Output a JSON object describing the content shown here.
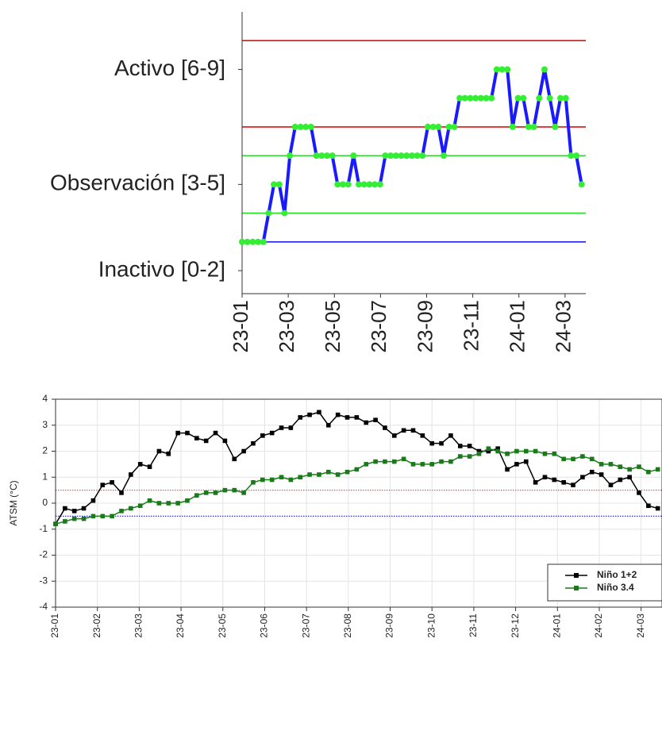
{
  "chart_data": [
    {
      "type": "line",
      "x": [
        0,
        0.23,
        0.46,
        0.69,
        0.92,
        1.15,
        1.38,
        1.61,
        1.84,
        2.07,
        2.3,
        2.53,
        2.76,
        2.99,
        3.22,
        3.45,
        3.68,
        3.91,
        4.14,
        4.37,
        4.6,
        4.83,
        5.06,
        5.29,
        5.52,
        5.75,
        5.98,
        6.21,
        6.44,
        6.67,
        6.9,
        7.13,
        7.36,
        7.59,
        7.82,
        8.05,
        8.28,
        8.51,
        8.74,
        8.97,
        9.2,
        9.43,
        9.66,
        9.89,
        10.12,
        10.35,
        10.58,
        10.81,
        11.04,
        11.27,
        11.5,
        11.73,
        11.96,
        12.19,
        12.42,
        12.65,
        12.88,
        13.11,
        13.34,
        13.57,
        13.8,
        14.03,
        14.26,
        14.49,
        14.72
      ],
      "series": [
        {
          "color": "#1a1aff",
          "marker_color": "#33ee33",
          "marker": "circle",
          "values": [
            1,
            1,
            1,
            1,
            1,
            2,
            3,
            3,
            2,
            4,
            5,
            5,
            5,
            5,
            4,
            4,
            4,
            4,
            3,
            3,
            3,
            4,
            3,
            3,
            3,
            3,
            3,
            4,
            4,
            4,
            4,
            4,
            4,
            4,
            4,
            5,
            5,
            5,
            4,
            5,
            5,
            6,
            6,
            6,
            6,
            6,
            6,
            6,
            7,
            7,
            7,
            5,
            6,
            6,
            5,
            5,
            6,
            7,
            6,
            5,
            6,
            6,
            4,
            4,
            3
          ]
        }
      ],
      "xlim": [
        0,
        14.9
      ],
      "ylim": [
        -0.8,
        9
      ],
      "xticks": [
        {
          "value": 0,
          "label": "23-01"
        },
        {
          "value": 2,
          "label": "23-03"
        },
        {
          "value": 4,
          "label": "23-05"
        },
        {
          "value": 6,
          "label": "23-07"
        },
        {
          "value": 8,
          "label": "23-09"
        },
        {
          "value": 10,
          "label": "23-11"
        },
        {
          "value": 12,
          "label": "24-01"
        },
        {
          "value": 14,
          "label": "24-03"
        }
      ],
      "yticks": [
        {
          "value": 0,
          "label": "Inactivo [0-2]"
        },
        {
          "value": 3,
          "label": "Observación [3-5]"
        },
        {
          "value": 7,
          "label": "Activo [6-9]"
        }
      ],
      "hlines": [
        {
          "value": 1,
          "color": "#2020e0"
        },
        {
          "value": 2,
          "color": "#22dd22"
        },
        {
          "value": 4,
          "color": "#22dd22"
        },
        {
          "value": 5,
          "color": "#e01010"
        },
        {
          "value": 8,
          "color": "#e01010"
        }
      ],
      "grid": false
    },
    {
      "type": "line",
      "y_label": "ATSM (°C)",
      "x": [
        0,
        0.225,
        0.45,
        0.675,
        0.9,
        1.125,
        1.35,
        1.575,
        1.8,
        2.025,
        2.25,
        2.475,
        2.7,
        2.925,
        3.15,
        3.375,
        3.6,
        3.825,
        4.05,
        4.275,
        4.5,
        4.725,
        4.95,
        5.175,
        5.4,
        5.625,
        5.85,
        6.075,
        6.3,
        6.525,
        6.75,
        6.975,
        7.2,
        7.425,
        7.65,
        7.875,
        8.1,
        8.325,
        8.55,
        8.775,
        9.0,
        9.225,
        9.45,
        9.675,
        9.9,
        10.125,
        10.35,
        10.575,
        10.8,
        11.025,
        11.25,
        11.475,
        11.7,
        11.925,
        12.15,
        12.375,
        12.6,
        12.825,
        13.05,
        13.275,
        13.5,
        13.725,
        13.95,
        14.175,
        14.4
      ],
      "series": [
        {
          "name": "Niño 1+2",
          "color": "#000000",
          "marker": "square",
          "values": [
            -0.8,
            -0.2,
            -0.3,
            -0.2,
            0.1,
            0.7,
            0.8,
            0.4,
            1.1,
            1.5,
            1.4,
            2.0,
            1.9,
            2.7,
            2.7,
            2.5,
            2.4,
            2.7,
            2.4,
            1.7,
            2.0,
            2.3,
            2.6,
            2.7,
            2.9,
            2.9,
            3.3,
            3.4,
            3.5,
            3.0,
            3.4,
            3.3,
            3.3,
            3.1,
            3.2,
            2.9,
            2.6,
            2.8,
            2.8,
            2.6,
            2.3,
            2.3,
            2.6,
            2.2,
            2.2,
            2.0,
            2.0,
            2.1,
            1.3,
            1.5,
            1.6,
            0.8,
            1.0,
            0.9,
            0.8,
            0.7,
            1.0,
            1.2,
            1.1,
            0.7,
            0.9,
            1.0,
            0.4,
            -0.1,
            -0.2
          ]
        },
        {
          "name": "Niño 3.4",
          "color": "#1a7a1a",
          "marker": "square",
          "values": [
            -0.8,
            -0.7,
            -0.6,
            -0.6,
            -0.5,
            -0.5,
            -0.5,
            -0.3,
            -0.2,
            -0.1,
            0.1,
            0.0,
            0.0,
            0.0,
            0.1,
            0.3,
            0.4,
            0.4,
            0.5,
            0.5,
            0.4,
            0.8,
            0.9,
            0.9,
            1.0,
            0.9,
            1.0,
            1.1,
            1.1,
            1.2,
            1.1,
            1.2,
            1.3,
            1.5,
            1.6,
            1.6,
            1.6,
            1.7,
            1.5,
            1.5,
            1.5,
            1.6,
            1.6,
            1.8,
            1.8,
            1.9,
            2.1,
            2.0,
            1.9,
            2.0,
            2.0,
            2.0,
            1.9,
            1.9,
            1.7,
            1.7,
            1.8,
            1.7,
            1.5,
            1.5,
            1.4,
            1.3,
            1.4,
            1.2,
            1.3
          ]
        }
      ],
      "xlim": [
        0,
        14.5
      ],
      "ylim": [
        -4,
        4
      ],
      "xticks": [
        {
          "value": 0,
          "label": "23-01"
        },
        {
          "value": 1,
          "label": "23-02"
        },
        {
          "value": 2,
          "label": "23-03"
        },
        {
          "value": 3,
          "label": "23-04"
        },
        {
          "value": 4,
          "label": "23-05"
        },
        {
          "value": 5,
          "label": "23-06"
        },
        {
          "value": 6,
          "label": "23-07"
        },
        {
          "value": 7,
          "label": "23-08"
        },
        {
          "value": 8,
          "label": "23-09"
        },
        {
          "value": 9,
          "label": "23-10"
        },
        {
          "value": 10,
          "label": "23-11"
        },
        {
          "value": 11,
          "label": "23-12"
        },
        {
          "value": 12,
          "label": "24-01"
        },
        {
          "value": 13,
          "label": "24-02"
        },
        {
          "value": 14,
          "label": "24-03"
        }
      ],
      "yticks": [
        -4,
        -3,
        -2,
        -1,
        0,
        1,
        2,
        3,
        4
      ],
      "hlines": [
        {
          "value": 0.5,
          "color": "#e06060"
        },
        {
          "value": -0.5,
          "color": "#3030e0"
        }
      ],
      "hline_style": "dotted",
      "grid": true,
      "legend": "lower right"
    }
  ]
}
